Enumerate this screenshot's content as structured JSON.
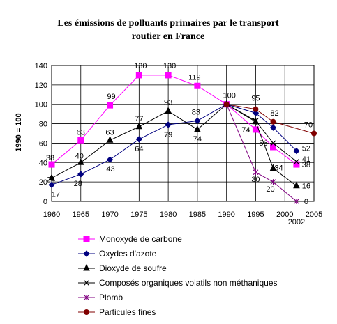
{
  "chart_data": {
    "type": "line",
    "title_lines": [
      "Les émissions de polluants primaires par le transport",
      "routier en France"
    ],
    "ylabel": "1990 = 100",
    "xlabel": "",
    "ylim": [
      0,
      140
    ],
    "yticks": [
      0,
      20,
      40,
      60,
      80,
      100,
      120,
      140
    ],
    "xlim": [
      1960,
      2005
    ],
    "xticks": [
      1960,
      1965,
      1970,
      1975,
      1980,
      1985,
      1990,
      1995,
      2000,
      2005
    ],
    "xtick_extra": "2002",
    "grid": true,
    "legend_position": "bottom",
    "series": [
      {
        "name": "Monoxyde de carbone",
        "color": "#ff00ff",
        "marker": "square",
        "x": [
          1960,
          1965,
          1970,
          1975,
          1980,
          1985,
          1990,
          1995,
          1998,
          2002
        ],
        "y": [
          38,
          63,
          99,
          130,
          130,
          119,
          100,
          74,
          56,
          38
        ],
        "labels": [
          "38",
          "63",
          "99",
          "130",
          "130",
          "119",
          "100",
          "74",
          "56",
          "38"
        ]
      },
      {
        "name": "Oxydes d'azote",
        "color": "#000080",
        "marker": "diamond",
        "x": [
          1960,
          1965,
          1970,
          1975,
          1980,
          1985,
          1990,
          1995,
          1998,
          2002
        ],
        "y": [
          17,
          28,
          43,
          64,
          79,
          83,
          100,
          91,
          76,
          52
        ],
        "labels": [
          "17",
          "28",
          "43",
          "64",
          "79",
          "83",
          "",
          "",
          "",
          "52"
        ]
      },
      {
        "name": "Dioxyde de soufre",
        "color": "#000000",
        "marker": "triangle",
        "x": [
          1960,
          1965,
          1970,
          1975,
          1980,
          1985,
          1990,
          1995,
          1998,
          2002
        ],
        "y": [
          24,
          40,
          63,
          77,
          93,
          74,
          100,
          82,
          34,
          16
        ],
        "labels": [
          "24",
          "40",
          "63",
          "77",
          "93",
          "74",
          "",
          "",
          "34",
          "16"
        ]
      },
      {
        "name": "Composés organiques volatils non méthaniques",
        "color": "#000000",
        "marker": "x",
        "x": [
          1990,
          1995,
          1998,
          2002
        ],
        "y": [
          100,
          83,
          60,
          41
        ],
        "labels": [
          "",
          "",
          "",
          "41"
        ]
      },
      {
        "name": "Plomb",
        "color": "#800080",
        "marker": "star",
        "x": [
          1990,
          1995,
          1998,
          2002
        ],
        "y": [
          100,
          30,
          20,
          0
        ],
        "labels": [
          "",
          "30",
          "20",
          "0"
        ]
      },
      {
        "name": "Particules fines",
        "color": "#800000",
        "marker": "circle",
        "x": [
          1990,
          1995,
          1998,
          2005
        ],
        "y": [
          100,
          95,
          82,
          70
        ],
        "labels": [
          "",
          "95",
          "82",
          "70"
        ]
      }
    ]
  }
}
